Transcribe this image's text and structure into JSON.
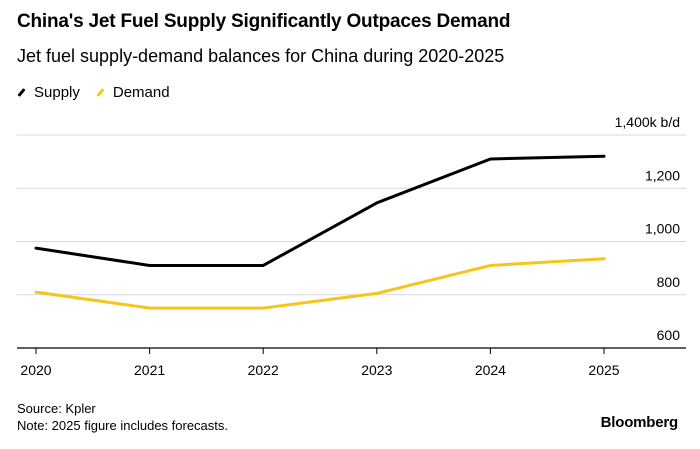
{
  "chart_data": {
    "type": "line",
    "title": "China's Jet Fuel Supply Significantly Outpaces Demand",
    "subtitle": "Jet fuel supply-demand balances for China during 2020-2025",
    "x": [
      "2020",
      "2021",
      "2022",
      "2023",
      "2024",
      "2025"
    ],
    "series": [
      {
        "name": "Supply",
        "color": "#000000",
        "values": [
          975,
          910,
          910,
          1145,
          1310,
          1320
        ]
      },
      {
        "name": "Demand",
        "color": "#f5c518",
        "values": [
          810,
          750,
          750,
          805,
          910,
          935
        ]
      }
    ],
    "ylim": [
      600,
      1400
    ],
    "yticks": [
      600,
      800,
      1000,
      1200,
      1400
    ],
    "ytick_labels": [
      "600",
      "800",
      "1,000",
      "1,200",
      "1,400k b/d"
    ],
    "grid": true,
    "legend": "top-left"
  },
  "footer": {
    "source": "Source: Kpler",
    "note": "Note: 2025 figure includes forecasts.",
    "brand": "Bloomberg"
  }
}
